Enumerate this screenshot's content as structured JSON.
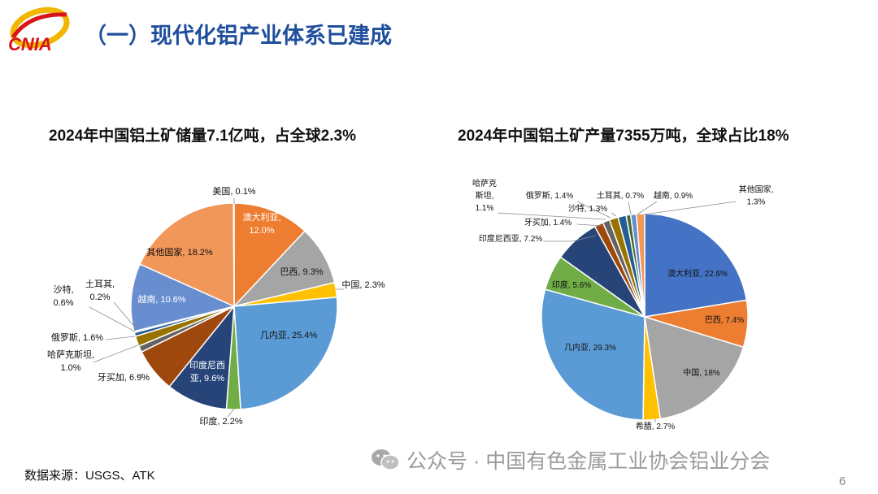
{
  "header": {
    "title": "（一）现代化铝产业体系已建成",
    "logo_text": "CNIA"
  },
  "chart_data": [
    {
      "type": "pie",
      "title": "2024年中国铝土矿储量7.1亿吨，占全球2.3%",
      "slices": [
        {
          "label": "澳大利亚",
          "value": 12.0,
          "text": "澳大利亚,",
          "text2": "12.0%",
          "color": "#ED7D31"
        },
        {
          "label": "巴西",
          "value": 9.3,
          "text": "巴西, 9.3%",
          "color": "#A5A5A5"
        },
        {
          "label": "中国",
          "value": 2.3,
          "text": "中国, 2.3%",
          "color": "#FFC000"
        },
        {
          "label": "几内亚",
          "value": 25.4,
          "text": "几内亚, 25.4%",
          "color": "#5B9BD5"
        },
        {
          "label": "印度",
          "value": 2.2,
          "text": "印度, 2.2%",
          "color": "#70AD47"
        },
        {
          "label": "印度尼西亚",
          "value": 9.6,
          "text": "印度尼西",
          "text2": "亚, 9.6%",
          "color": "#264478"
        },
        {
          "label": "牙买加",
          "value": 6.9,
          "text": "牙买加, 6.9%",
          "color": "#9E480E"
        },
        {
          "label": "哈萨克斯坦",
          "value": 1.0,
          "text": "哈萨克斯坦,",
          "text2": "1.0%",
          "color": "#636363"
        },
        {
          "label": "俄罗斯",
          "value": 1.6,
          "text": "俄罗斯, 1.6%",
          "color": "#997300"
        },
        {
          "label": "沙特",
          "value": 0.6,
          "text": "沙特,",
          "text2": "0.6%",
          "color": "#255E91"
        },
        {
          "label": "土耳其",
          "value": 0.2,
          "text": "土耳其,",
          "text2": "0.2%",
          "color": "#43682B"
        },
        {
          "label": "越南",
          "value": 10.6,
          "text": "越南, 10.6%",
          "color": "#698ED0"
        },
        {
          "label": "其他国家",
          "value": 18.2,
          "text": "其他国家, 18.2%",
          "color": "#F1975A"
        },
        {
          "label": "美国",
          "value": 0.1,
          "text": "美国, 0.1%",
          "color": "#B7B7B7"
        }
      ]
    },
    {
      "type": "pie",
      "title": "2024年中国铝土矿产量7355万吨，全球占比18%",
      "slices": [
        {
          "label": "澳大利亚",
          "value": 22.6,
          "text": "澳大利亚, 22.6%",
          "color": "#4472C4"
        },
        {
          "label": "巴西",
          "value": 7.4,
          "text": "巴西, 7.4%",
          "color": "#ED7D31"
        },
        {
          "label": "中国",
          "value": 18,
          "text": "中国, 18%",
          "color": "#A5A5A5"
        },
        {
          "label": "希腊",
          "value": 2.7,
          "text": "希腊, 2.7%",
          "color": "#FFC000"
        },
        {
          "label": "几内亚",
          "value": 29.3,
          "text": "几内亚, 29.3%",
          "color": "#5B9BD5"
        },
        {
          "label": "印度",
          "value": 5.6,
          "text": "印度, 5.6%",
          "color": "#70AD47"
        },
        {
          "label": "印度尼西亚",
          "value": 7.2,
          "text": "印度尼西亚, 7.2%",
          "color": "#264478"
        },
        {
          "label": "牙买加",
          "value": 1.4,
          "text": "牙买加, 1.4%",
          "color": "#9E480E"
        },
        {
          "label": "哈萨克斯坦",
          "value": 1.1,
          "text": "哈萨克",
          "text2": "斯坦,",
          "text3": "1.1%",
          "color": "#636363"
        },
        {
          "label": "俄罗斯",
          "value": 1.4,
          "text": "俄罗斯, 1.4%",
          "color": "#997300"
        },
        {
          "label": "沙特",
          "value": 1.3,
          "text": "沙特, 1.3%",
          "color": "#255E91"
        },
        {
          "label": "土耳其",
          "value": 0.7,
          "text": "土耳其, 0.7%",
          "color": "#43682B"
        },
        {
          "label": "越南",
          "value": 0.9,
          "text": "越南, 0.9%",
          "color": "#698ED0"
        },
        {
          "label": "其他国家",
          "value": 1.3,
          "text": "其他国家,",
          "text2": "1.3%",
          "color": "#F1975A"
        }
      ]
    }
  ],
  "footer": {
    "source": "数据来源：USGS、ATK",
    "watermark": "公众号 · 中国有色金属工业协会铝业分会",
    "page_number": "6"
  }
}
